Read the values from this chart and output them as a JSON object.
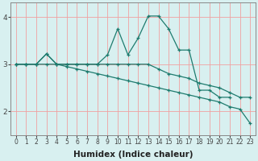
{
  "xlabel": "Humidex (Indice chaleur)",
  "x_values": [
    0,
    1,
    2,
    3,
    4,
    5,
    6,
    7,
    8,
    9,
    10,
    11,
    12,
    13,
    14,
    15,
    16,
    17,
    18,
    19,
    20,
    21,
    22,
    23
  ],
  "line1_y": [
    3.0,
    3.0,
    3.0,
    3.22,
    3.0,
    3.0,
    3.0,
    3.0,
    3.0,
    3.2,
    3.75,
    3.2,
    3.55,
    4.02,
    4.02,
    3.75,
    3.3,
    3.3,
    2.45,
    2.45,
    2.3,
    2.3,
    null,
    null
  ],
  "line2_y": [
    3.0,
    3.0,
    3.0,
    3.22,
    3.0,
    3.0,
    3.0,
    3.0,
    3.0,
    3.0,
    3.0,
    3.0,
    3.0,
    3.0,
    2.9,
    2.8,
    2.75,
    2.7,
    2.6,
    2.55,
    2.5,
    2.4,
    2.3,
    2.3
  ],
  "line3_y": [
    3.0,
    3.0,
    3.0,
    3.0,
    3.0,
    2.95,
    2.9,
    2.85,
    2.8,
    2.75,
    2.7,
    2.65,
    2.6,
    2.55,
    2.5,
    2.45,
    2.4,
    2.35,
    2.3,
    2.25,
    2.2,
    2.1,
    2.05,
    1.75
  ],
  "line_color": "#1e7b6e",
  "bg_color": "#d8f0f0",
  "grid_color": "#f0a0a0",
  "axis_color": "#888888",
  "ylim": [
    1.5,
    4.3
  ],
  "xlim": [
    -0.5,
    23.5
  ],
  "yticks": [
    2,
    3,
    4
  ],
  "xticks": [
    0,
    1,
    2,
    3,
    4,
    5,
    6,
    7,
    8,
    9,
    10,
    11,
    12,
    13,
    14,
    15,
    16,
    17,
    18,
    19,
    20,
    21,
    22,
    23
  ],
  "tick_fontsize": 5.5,
  "xlabel_fontsize": 7.5
}
